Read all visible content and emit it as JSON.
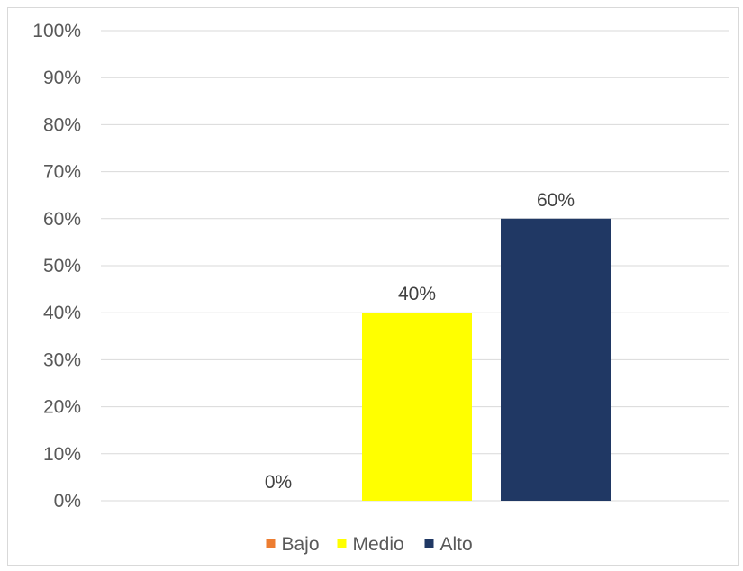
{
  "chart_data": {
    "type": "bar",
    "categories": [
      "Bajo",
      "Medio",
      "Alto"
    ],
    "series": [
      {
        "name": "Bajo",
        "values": [
          0,
          null,
          null
        ],
        "color": "#ED7D31",
        "label": "0%"
      },
      {
        "name": "Medio",
        "values": [
          null,
          40,
          null
        ],
        "color": "#FFFF00",
        "label": "40%"
      },
      {
        "name": "Alto",
        "values": [
          null,
          null,
          60
        ],
        "color": "#203864",
        "label": "60%"
      }
    ],
    "ylim": [
      0,
      100
    ],
    "yticks": [
      0,
      10,
      20,
      30,
      40,
      50,
      60,
      70,
      80,
      90,
      100
    ],
    "ytick_labels": [
      "0%",
      "10%",
      "20%",
      "30%",
      "40%",
      "50%",
      "60%",
      "70%",
      "80%",
      "90%",
      "100%"
    ],
    "grid": true,
    "legend": {
      "position": "bottom",
      "entries": [
        "Bajo",
        "Medio",
        "Alto"
      ]
    },
    "title": "",
    "xlabel": "",
    "ylabel": ""
  }
}
